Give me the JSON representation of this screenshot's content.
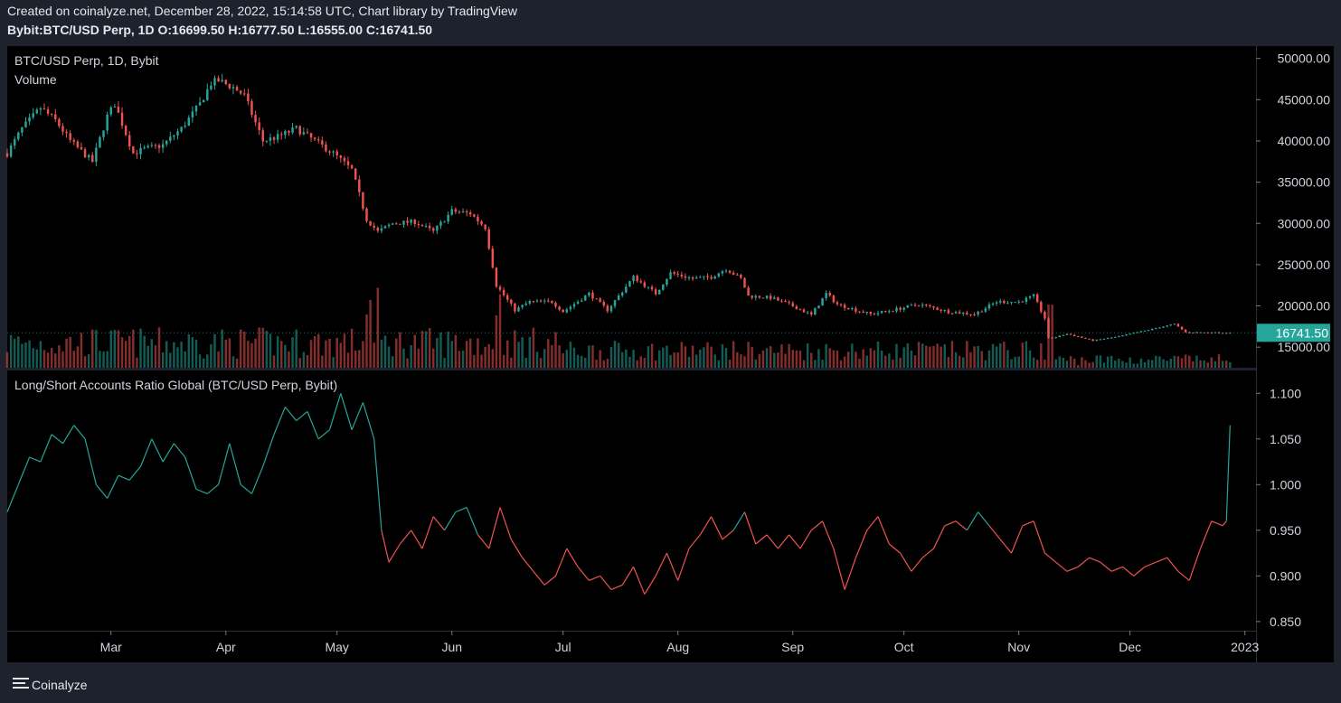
{
  "header": {
    "created_line": "Created on coinalyze.net, December 28, 2022, 15:14:58 UTC, Chart library by TradingView",
    "symbol": "Bybit:BTC/USD Perp, 1D",
    "o_label": "O:",
    "o_value": "16699.50",
    "h_label": "H:",
    "h_value": "16777.50",
    "l_label": "L:",
    "l_value": "16555.00",
    "c_label": "C:",
    "c_value": "16741.50"
  },
  "footer": {
    "brand": "Coinalyze"
  },
  "colors": {
    "up": "#26a69a",
    "down": "#ef5350",
    "background": "#000000",
    "frame": "#1e222d",
    "text": "#d1d4dc",
    "badge": "#26a69a"
  },
  "chart_data": [
    {
      "type": "candlestick",
      "title": "BTC/USD Perp, 1D, Bybit",
      "subtitle": "Volume",
      "last_price_label": "16741.50",
      "x_tick_labels": [
        "Mar",
        "Apr",
        "May",
        "Jun",
        "Jul",
        "Aug",
        "Sep",
        "Oct",
        "Nov",
        "Dec",
        "2023"
      ],
      "x_ticks": [
        "2022-03-01",
        "2022-04-01",
        "2022-05-01",
        "2022-06-01",
        "2022-07-01",
        "2022-08-01",
        "2022-09-01",
        "2022-10-01",
        "2022-11-01",
        "2022-12-01",
        "2023-01-01"
      ],
      "y_tick_labels": [
        "15000.00",
        "20000.00",
        "25000.00",
        "30000.00",
        "35000.00",
        "40000.00",
        "45000.00",
        "50000.00"
      ],
      "y_ticks": [
        15000,
        20000,
        25000,
        30000,
        35000,
        40000,
        45000,
        50000
      ],
      "ylim": [
        12500,
        51500
      ],
      "xlim": [
        "2022-02-01",
        "2023-01-04"
      ],
      "close_anchors": [
        [
          "2022-02-01",
          38500
        ],
        [
          "2022-02-05",
          41500
        ],
        [
          "2022-02-10",
          44000
        ],
        [
          "2022-02-14",
          42500
        ],
        [
          "2022-02-18",
          40000
        ],
        [
          "2022-02-24",
          37500
        ],
        [
          "2022-02-28",
          43000
        ],
        [
          "2022-03-02",
          44500
        ],
        [
          "2022-03-07",
          38500
        ],
        [
          "2022-03-10",
          39000
        ],
        [
          "2022-03-15",
          39500
        ],
        [
          "2022-03-20",
          41500
        ],
        [
          "2022-03-25",
          44500
        ],
        [
          "2022-03-28",
          47000
        ],
        [
          "2022-03-30",
          47300
        ],
        [
          "2022-04-03",
          46500
        ],
        [
          "2022-04-06",
          45500
        ],
        [
          "2022-04-11",
          40000
        ],
        [
          "2022-04-15",
          40500
        ],
        [
          "2022-04-20",
          41500
        ],
        [
          "2022-04-25",
          40000
        ],
        [
          "2022-04-30",
          38500
        ],
        [
          "2022-05-05",
          36500
        ],
        [
          "2022-05-09",
          30500
        ],
        [
          "2022-05-12",
          29000
        ],
        [
          "2022-05-16",
          30000
        ],
        [
          "2022-05-22",
          30200
        ],
        [
          "2022-05-27",
          29000
        ],
        [
          "2022-06-01",
          31500
        ],
        [
          "2022-06-06",
          31200
        ],
        [
          "2022-06-10",
          29500
        ],
        [
          "2022-06-13",
          22500
        ],
        [
          "2022-06-18",
          19500
        ],
        [
          "2022-06-22",
          20500
        ],
        [
          "2022-06-28",
          20500
        ],
        [
          "2022-07-01",
          19300
        ],
        [
          "2022-07-08",
          21500
        ],
        [
          "2022-07-13",
          19500
        ],
        [
          "2022-07-20",
          23500
        ],
        [
          "2022-07-26",
          21500
        ],
        [
          "2022-07-30",
          24000
        ],
        [
          "2022-08-05",
          23300
        ],
        [
          "2022-08-10",
          23500
        ],
        [
          "2022-08-14",
          24500
        ],
        [
          "2022-08-18",
          23300
        ],
        [
          "2022-08-20",
          21200
        ],
        [
          "2022-08-26",
          21000
        ],
        [
          "2022-09-01",
          20000
        ],
        [
          "2022-09-06",
          18900
        ],
        [
          "2022-09-10",
          21500
        ],
        [
          "2022-09-13",
          20200
        ],
        [
          "2022-09-18",
          19500
        ],
        [
          "2022-09-22",
          19000
        ],
        [
          "2022-09-28",
          19500
        ],
        [
          "2022-10-05",
          20200
        ],
        [
          "2022-10-13",
          19300
        ],
        [
          "2022-10-20",
          19000
        ],
        [
          "2022-10-26",
          20500
        ],
        [
          "2022-11-01",
          20500
        ],
        [
          "2022-11-05",
          21200
        ],
        [
          "2022-11-08",
          18500
        ],
        [
          "2022-11-09",
          16000
        ],
        [
          "2022-11-14",
          16600
        ],
        [
          "2022-11-21",
          15800
        ],
        [
          "2022-11-28",
          16300
        ],
        [
          "2022-12-05",
          17000
        ],
        [
          "2022-12-13",
          17800
        ],
        [
          "2022-12-16",
          16800
        ],
        [
          "2022-12-28",
          16741.5
        ]
      ],
      "volume_spikes": [
        "2022-05-09",
        "2022-05-10",
        "2022-05-12",
        "2022-06-13",
        "2022-06-14",
        "2022-11-09",
        "2022-11-10"
      ]
    },
    {
      "type": "line",
      "title": "Long/Short Accounts Ratio Global (BTC/USD Perp, Bybit)",
      "y_tick_labels": [
        "0.850",
        "0.900",
        "0.950",
        "1.000",
        "1.050",
        "1.100"
      ],
      "y_ticks": [
        0.85,
        0.9,
        0.95,
        1.0,
        1.05,
        1.1
      ],
      "ylim": [
        0.84,
        1.125
      ],
      "baseline": 0.96,
      "points": [
        [
          "2022-02-01",
          0.97
        ],
        [
          "2022-02-04",
          1.0
        ],
        [
          "2022-02-07",
          1.03
        ],
        [
          "2022-02-10",
          1.025
        ],
        [
          "2022-02-13",
          1.055
        ],
        [
          "2022-02-16",
          1.045
        ],
        [
          "2022-02-19",
          1.065
        ],
        [
          "2022-02-22",
          1.05
        ],
        [
          "2022-02-25",
          1.0
        ],
        [
          "2022-02-28",
          0.985
        ],
        [
          "2022-03-03",
          1.01
        ],
        [
          "2022-03-06",
          1.005
        ],
        [
          "2022-03-09",
          1.02
        ],
        [
          "2022-03-12",
          1.05
        ],
        [
          "2022-03-15",
          1.025
        ],
        [
          "2022-03-18",
          1.045
        ],
        [
          "2022-03-21",
          1.03
        ],
        [
          "2022-03-24",
          0.995
        ],
        [
          "2022-03-27",
          0.99
        ],
        [
          "2022-03-30",
          1.0
        ],
        [
          "2022-04-02",
          1.045
        ],
        [
          "2022-04-05",
          1.0
        ],
        [
          "2022-04-08",
          0.99
        ],
        [
          "2022-04-11",
          1.02
        ],
        [
          "2022-04-14",
          1.055
        ],
        [
          "2022-04-17",
          1.085
        ],
        [
          "2022-04-20",
          1.07
        ],
        [
          "2022-04-23",
          1.08
        ],
        [
          "2022-04-26",
          1.05
        ],
        [
          "2022-04-29",
          1.06
        ],
        [
          "2022-05-02",
          1.1
        ],
        [
          "2022-05-05",
          1.06
        ],
        [
          "2022-05-08",
          1.09
        ],
        [
          "2022-05-11",
          1.05
        ],
        [
          "2022-05-13",
          0.95
        ],
        [
          "2022-05-15",
          0.915
        ],
        [
          "2022-05-18",
          0.935
        ],
        [
          "2022-05-21",
          0.95
        ],
        [
          "2022-05-24",
          0.93
        ],
        [
          "2022-05-27",
          0.965
        ],
        [
          "2022-05-30",
          0.95
        ],
        [
          "2022-06-02",
          0.97
        ],
        [
          "2022-06-05",
          0.975
        ],
        [
          "2022-06-08",
          0.945
        ],
        [
          "2022-06-11",
          0.93
        ],
        [
          "2022-06-14",
          0.975
        ],
        [
          "2022-06-17",
          0.94
        ],
        [
          "2022-06-20",
          0.92
        ],
        [
          "2022-06-23",
          0.905
        ],
        [
          "2022-06-26",
          0.89
        ],
        [
          "2022-06-29",
          0.9
        ],
        [
          "2022-07-02",
          0.93
        ],
        [
          "2022-07-05",
          0.91
        ],
        [
          "2022-07-08",
          0.895
        ],
        [
          "2022-07-11",
          0.9
        ],
        [
          "2022-07-14",
          0.885
        ],
        [
          "2022-07-17",
          0.89
        ],
        [
          "2022-07-20",
          0.91
        ],
        [
          "2022-07-23",
          0.88
        ],
        [
          "2022-07-26",
          0.9
        ],
        [
          "2022-07-29",
          0.925
        ],
        [
          "2022-08-01",
          0.895
        ],
        [
          "2022-08-04",
          0.93
        ],
        [
          "2022-08-07",
          0.945
        ],
        [
          "2022-08-10",
          0.965
        ],
        [
          "2022-08-13",
          0.94
        ],
        [
          "2022-08-16",
          0.95
        ],
        [
          "2022-08-19",
          0.97
        ],
        [
          "2022-08-22",
          0.935
        ],
        [
          "2022-08-25",
          0.945
        ],
        [
          "2022-08-28",
          0.93
        ],
        [
          "2022-08-31",
          0.945
        ],
        [
          "2022-09-03",
          0.93
        ],
        [
          "2022-09-06",
          0.95
        ],
        [
          "2022-09-09",
          0.96
        ],
        [
          "2022-09-12",
          0.93
        ],
        [
          "2022-09-15",
          0.885
        ],
        [
          "2022-09-18",
          0.92
        ],
        [
          "2022-09-21",
          0.95
        ],
        [
          "2022-09-24",
          0.965
        ],
        [
          "2022-09-27",
          0.935
        ],
        [
          "2022-09-30",
          0.925
        ],
        [
          "2022-10-03",
          0.905
        ],
        [
          "2022-10-06",
          0.92
        ],
        [
          "2022-10-09",
          0.93
        ],
        [
          "2022-10-12",
          0.955
        ],
        [
          "2022-10-15",
          0.96
        ],
        [
          "2022-10-18",
          0.95
        ],
        [
          "2022-10-21",
          0.97
        ],
        [
          "2022-10-24",
          0.955
        ],
        [
          "2022-10-27",
          0.94
        ],
        [
          "2022-10-30",
          0.925
        ],
        [
          "2022-11-02",
          0.955
        ],
        [
          "2022-11-05",
          0.96
        ],
        [
          "2022-11-08",
          0.925
        ],
        [
          "2022-11-11",
          0.915
        ],
        [
          "2022-11-14",
          0.905
        ],
        [
          "2022-11-17",
          0.91
        ],
        [
          "2022-11-20",
          0.92
        ],
        [
          "2022-11-23",
          0.915
        ],
        [
          "2022-11-26",
          0.905
        ],
        [
          "2022-11-29",
          0.91
        ],
        [
          "2022-12-02",
          0.9
        ],
        [
          "2022-12-05",
          0.91
        ],
        [
          "2022-12-08",
          0.915
        ],
        [
          "2022-12-11",
          0.92
        ],
        [
          "2022-12-14",
          0.905
        ],
        [
          "2022-12-17",
          0.895
        ],
        [
          "2022-12-20",
          0.93
        ],
        [
          "2022-12-23",
          0.96
        ],
        [
          "2022-12-26",
          0.955
        ],
        [
          "2022-12-27",
          0.96
        ],
        [
          "2022-12-28",
          1.065
        ]
      ]
    }
  ]
}
